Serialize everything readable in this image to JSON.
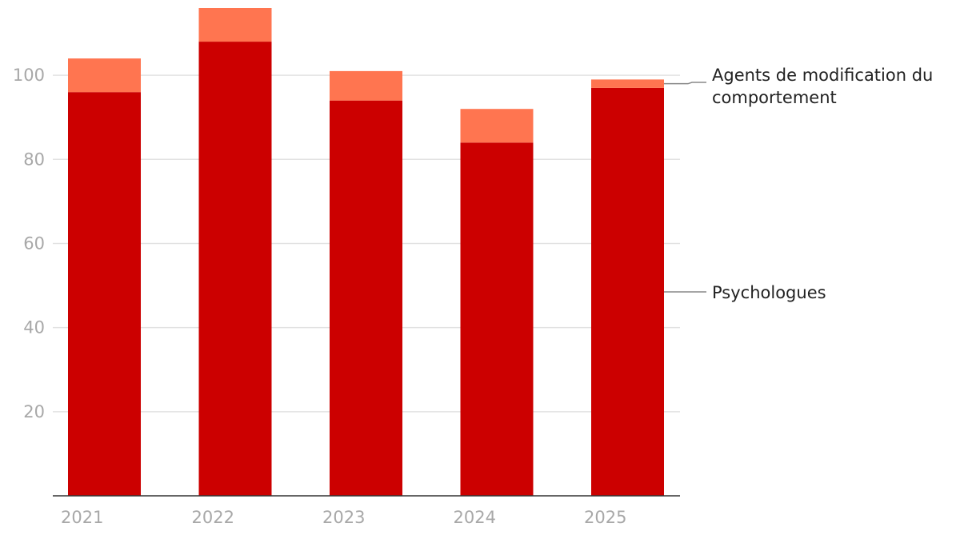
{
  "chart_data": {
    "type": "bar",
    "stacked": true,
    "categories": [
      "2021",
      "2022",
      "2023",
      "2024",
      "2025"
    ],
    "series": [
      {
        "name": "Psychologues",
        "values": [
          96,
          108,
          94,
          84,
          97
        ],
        "color": "#cc0000"
      },
      {
        "name": "Agents de modification du comportement",
        "name_lines": [
          "Agents de modification du",
          "comportement"
        ],
        "values": [
          8,
          8,
          7,
          8,
          2
        ],
        "color": "#ff7550"
      }
    ],
    "yticks": [
      20,
      40,
      60,
      80,
      100
    ],
    "ylim": [
      0,
      116
    ],
    "grid": true,
    "legend": "right, direct labels",
    "title": "",
    "xlabel": "",
    "ylabel": ""
  }
}
